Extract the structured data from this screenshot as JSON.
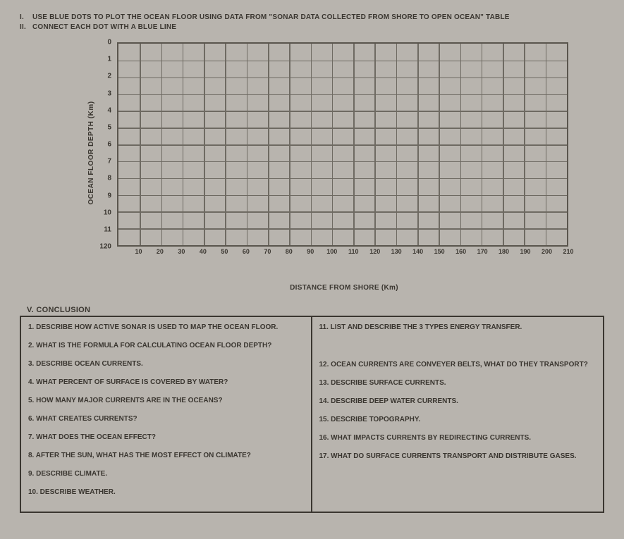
{
  "instructions": {
    "line1_num": "I.",
    "line1": "USE BLUE DOTS TO PLOT THE OCEAN FLOOR USING DATA FROM \"SONAR DATA COLLECTED FROM SHORE TO OPEN OCEAN\" TABLE",
    "line2_num": "II.",
    "line2": "CONNECT EACH DOT WITH A BLUE LINE"
  },
  "chart": {
    "y_label": "OCEAN FLOOR DEPTH (Km)",
    "x_label": "DISTANCE FROM SHORE (Km)",
    "y_ticks": [
      "0",
      "1",
      "2",
      "3",
      "4",
      "5",
      "6",
      "7",
      "8",
      "9",
      "10",
      "11",
      "120"
    ],
    "x_ticks": [
      "10",
      "20",
      "30",
      "40",
      "50",
      "60",
      "70",
      "80",
      "90",
      "100",
      "110",
      "120",
      "130",
      "140",
      "150",
      "160",
      "170",
      "180",
      "190",
      "200",
      "210"
    ],
    "grid_color": "#6e6a62",
    "grid_minor_color": "#8c8880",
    "background": "transparent",
    "y_count": 12,
    "x_count": 21,
    "y_minor_per": 1,
    "x_minor_per": 1,
    "border_color": "#5a554d"
  },
  "section_header": "V. CONCLUSION",
  "conclusion": {
    "left": [
      "1. DESCRIBE HOW ACTIVE SONAR IS USED TO MAP THE OCEAN FLOOR.",
      "2. WHAT IS THE FORMULA FOR CALCULATING OCEAN FLOOR DEPTH?",
      "3. DESCRIBE OCEAN CURRENTS.",
      "4. WHAT PERCENT OF SURFACE IS COVERED BY WATER?",
      "5. HOW MANY MAJOR CURRENTS ARE IN THE OCEANS?",
      "6. WHAT CREATES CURRENTS?",
      "7. WHAT DOES THE OCEAN EFFECT?",
      "8. AFTER THE SUN, WHAT HAS THE MOST EFFECT ON CLIMATE?",
      "9. DESCRIBE CLIMATE.",
      "10. DESCRIBE WEATHER."
    ],
    "right": [
      "11. LIST AND DESCRIBE THE 3 TYPES ENERGY TRANSFER.",
      "12. OCEAN CURRENTS ARE CONVEYER BELTS, WHAT DO THEY TRANSPORT?",
      "13. DESCRIBE SURFACE CURRENTS.",
      "14. DESCRIBE DEEP WATER CURRENTS.",
      "15. DESCRIBE TOPOGRAPHY.",
      "16. WHAT IMPACTS CURRENTS BY REDIRECTING CURRENTS.",
      "17. WHAT DO SURFACE CURRENTS TRANSPORT AND DISTRIBUTE GASES."
    ]
  },
  "colors": {
    "page_bg": "#b8b4ae",
    "text": "#3a3630",
    "border": "#3a3630"
  }
}
